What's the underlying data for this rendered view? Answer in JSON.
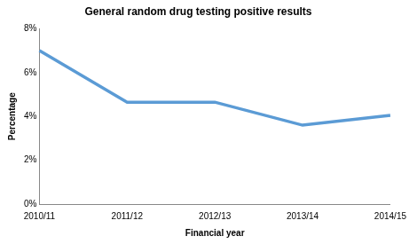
{
  "chart_data": {
    "type": "line",
    "title": "General random drug testing positive results",
    "x_label": "Financial year",
    "y_label": "Percentage",
    "categories": [
      "2010/11",
      "2011/12",
      "2012/13",
      "2013/14",
      "2014/15"
    ],
    "values": [
      7.0,
      4.65,
      4.65,
      3.6,
      4.05
    ],
    "color": "#5b9bd5",
    "ylim": [
      0,
      8
    ],
    "yticks": [
      {
        "value": 0,
        "label": "0%"
      },
      {
        "value": 2,
        "label": "2%"
      },
      {
        "value": 4,
        "label": "4%"
      },
      {
        "value": 6,
        "label": "6%"
      },
      {
        "value": 8,
        "label": "8%"
      }
    ],
    "grid": false
  }
}
